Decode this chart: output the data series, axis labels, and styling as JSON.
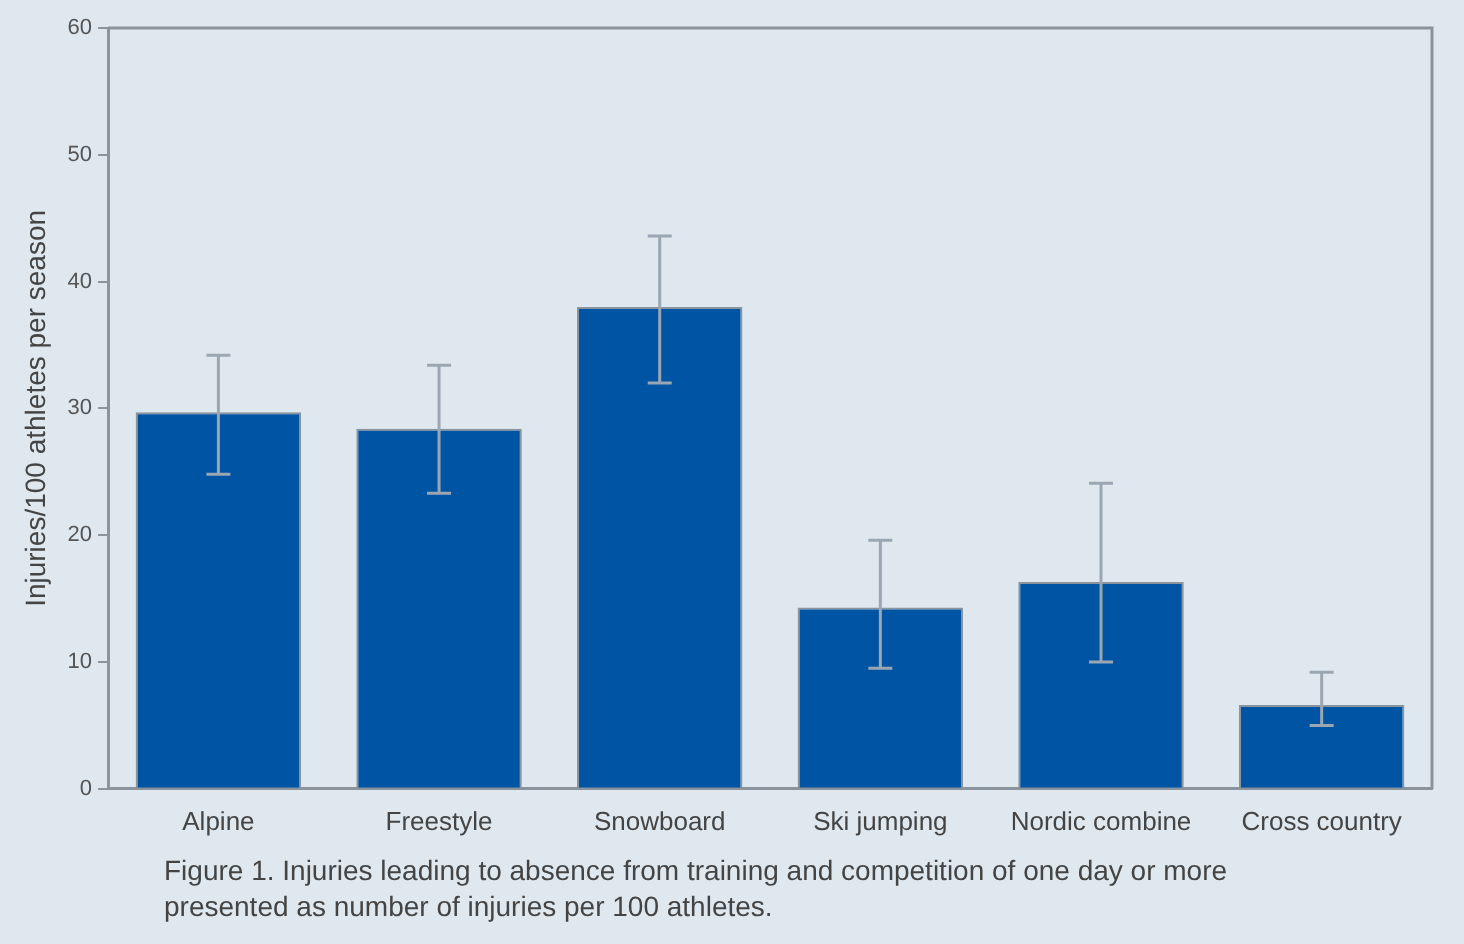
{
  "chart_data": {
    "type": "bar",
    "ylabel": "Injuries/100 athletes per season",
    "categories": [
      "Alpine",
      "Freestyle",
      "Snowboard",
      "Ski jumping",
      "Nordic combine",
      "Cross country"
    ],
    "values": [
      29.7,
      28.4,
      38.0,
      14.3,
      16.3,
      6.6
    ],
    "errors": [
      [
        24.8,
        34.2
      ],
      [
        23.3,
        33.4
      ],
      [
        32.0,
        43.6
      ],
      [
        9.5,
        19.6
      ],
      [
        10.0,
        24.1
      ],
      [
        5.0,
        9.2
      ]
    ],
    "color": "#0054a4",
    "ylim": [
      0,
      60
    ],
    "yticks": [
      0,
      10,
      20,
      30,
      40,
      50,
      60
    ],
    "grid": false,
    "legend": false,
    "annotations": [
      "Figure 1. Injuries leading to absence from training and competition of one day or more presented as number of injuries per 100 athletes."
    ]
  }
}
